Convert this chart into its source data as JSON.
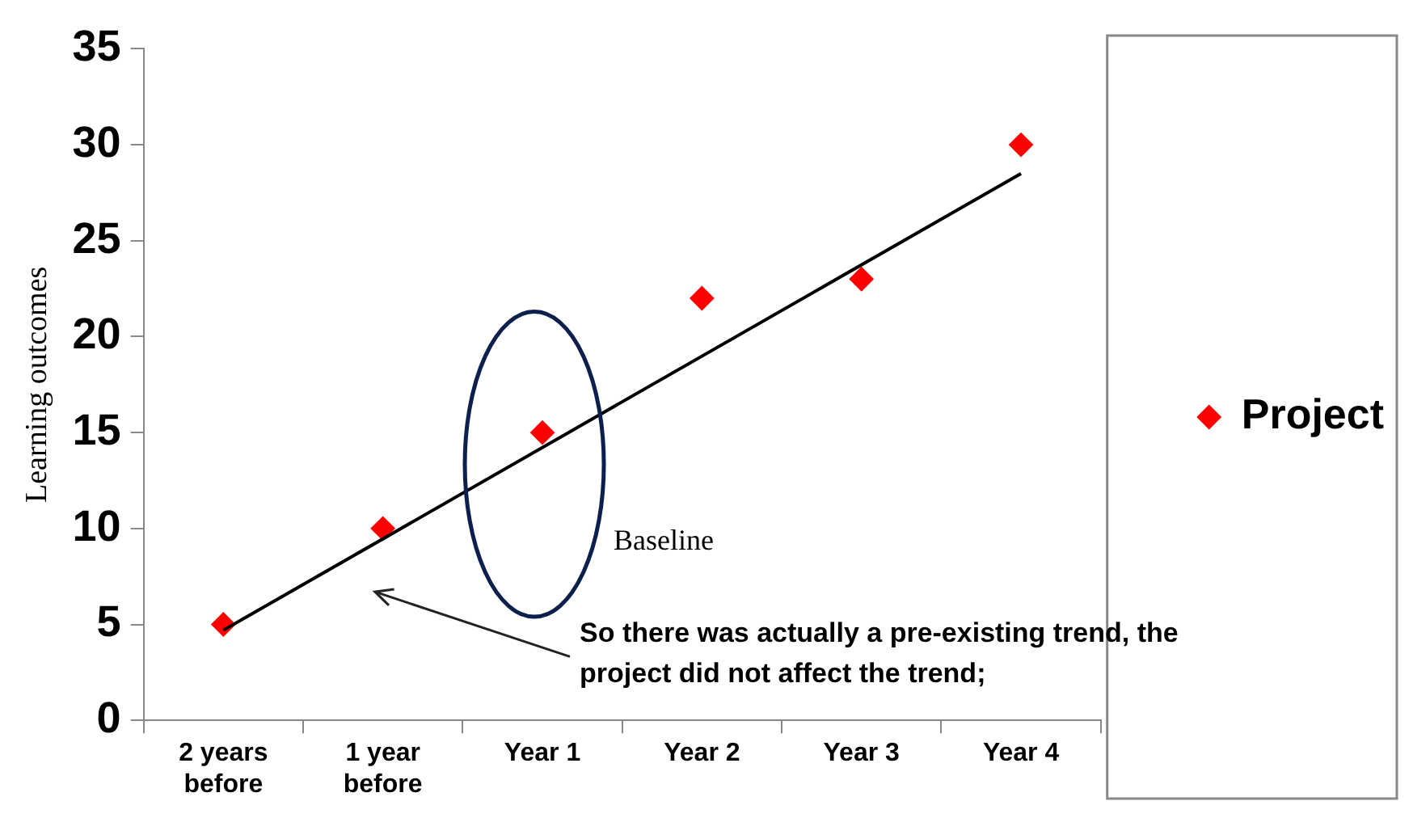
{
  "chart_data": {
    "type": "scatter",
    "ylabel": "Learning outcomes",
    "categories": [
      "2 years before",
      "1 year before",
      "Year 1",
      "Year 2",
      "Year 3",
      "Year 4"
    ],
    "series": [
      {
        "name": "Project",
        "color": "#ff0000",
        "values": [
          5,
          10,
          15,
          22,
          23,
          30
        ]
      },
      {
        "type": "line",
        "color": "#000000",
        "x": [
          "2 years before",
          "Year 4"
        ],
        "values": [
          4.7,
          28.5
        ],
        "marker": "none"
      }
    ],
    "ylim": [
      0,
      35
    ],
    "yticks": [
      0,
      5,
      10,
      15,
      20,
      25,
      30,
      35
    ],
    "grid": false,
    "legend": "right",
    "marker": "diamond",
    "annotations": [
      "Baseline",
      "So there was actually a pre-existing trend, the project did not affect the trend;"
    ]
  }
}
